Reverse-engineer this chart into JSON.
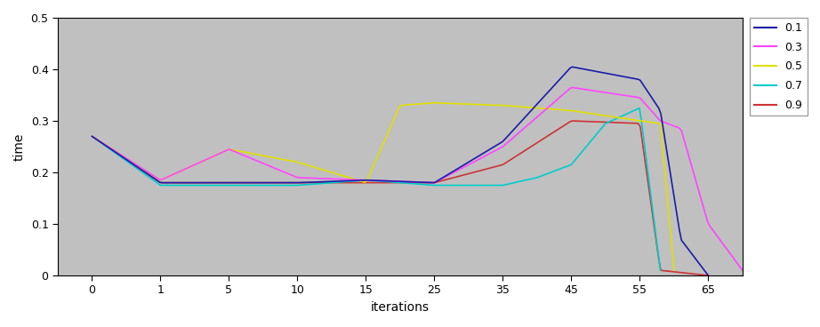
{
  "title": "",
  "xlabel": "iterations",
  "ylabel": "time",
  "xlim": [
    -0.5,
    9.5
  ],
  "ylim": [
    0,
    0.5
  ],
  "xtick_labels": [
    "0",
    "1",
    "5",
    "10",
    "15",
    "25",
    "35",
    "45",
    "55",
    "65"
  ],
  "yticks": [
    0,
    0.1,
    0.2,
    0.3,
    0.4,
    0.5
  ],
  "ytick_labels": [
    "0",
    "0.1",
    "0.2",
    "0.3",
    "0.4",
    "0.5"
  ],
  "background_color": "#c0c0c0",
  "fig_background": "#ffffff",
  "series": {
    "0.1": {
      "color": "#1c1ca8",
      "xi": [
        0,
        1,
        2,
        3,
        4,
        5,
        6,
        7,
        8,
        8.3,
        8.6,
        9.0
      ],
      "y": [
        0.27,
        0.18,
        0.18,
        0.18,
        0.185,
        0.18,
        0.26,
        0.405,
        0.38,
        0.32,
        0.07,
        0.0
      ]
    },
    "0.3": {
      "color": "#ff44ff",
      "xi": [
        0,
        1,
        2,
        3,
        4,
        5,
        6,
        7,
        8,
        8.3,
        8.6,
        9.0,
        9.5
      ],
      "y": [
        0.27,
        0.185,
        0.245,
        0.19,
        0.185,
        0.18,
        0.25,
        0.365,
        0.345,
        0.3,
        0.285,
        0.1,
        0.01
      ]
    },
    "0.5": {
      "color": "#e0e000",
      "xi": [
        0,
        1,
        2,
        3,
        4,
        4.5,
        5,
        6,
        7,
        8,
        8.3,
        8.5
      ],
      "y": [
        0.27,
        0.185,
        0.245,
        0.22,
        0.18,
        0.33,
        0.335,
        0.33,
        0.32,
        0.3,
        0.295,
        0.01
      ]
    },
    "0.7": {
      "color": "#00cccc",
      "xi": [
        0,
        1,
        2,
        3,
        4,
        5,
        6,
        6.5,
        7,
        7.5,
        8,
        8.3
      ],
      "y": [
        0.27,
        0.175,
        0.175,
        0.175,
        0.185,
        0.175,
        0.175,
        0.19,
        0.215,
        0.295,
        0.325,
        0.01
      ]
    },
    "0.9": {
      "color": "#cc3333",
      "xi": [
        0,
        1,
        2,
        3,
        4,
        5,
        6,
        7,
        8,
        8.3,
        9.0
      ],
      "y": [
        0.27,
        0.18,
        0.18,
        0.18,
        0.18,
        0.18,
        0.215,
        0.3,
        0.295,
        0.01,
        0.0
      ]
    }
  }
}
